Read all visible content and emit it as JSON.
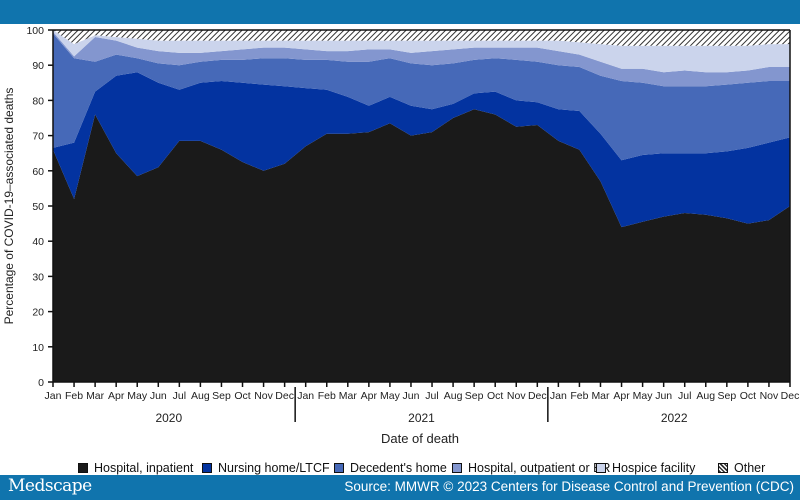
{
  "header": {
    "color": "#1074ad"
  },
  "footer": {
    "brand": "Medscape",
    "source": "Source: MMWR © 2023 Centers for Disease Control and Prevention (CDC)"
  },
  "chart_data": {
    "type": "area",
    "stacked": true,
    "title": "",
    "xlabel": "Date of death",
    "ylabel": "Percentage of COVID-19–associated deaths",
    "ylim": [
      0,
      100
    ],
    "yticks": [
      0,
      10,
      20,
      30,
      40,
      50,
      60,
      70,
      80,
      90,
      100
    ],
    "grid": false,
    "legend_position": "bottom",
    "years": [
      "2020",
      "2021",
      "2022"
    ],
    "month_labels": [
      "Jan",
      "Feb",
      "Mar",
      "Apr",
      "May",
      "Jun",
      "Jul",
      "Aug",
      "Sep",
      "Oct",
      "Nov",
      "Dec"
    ],
    "x": [
      "Jan 2020",
      "Feb 2020",
      "Mar 2020",
      "Apr 2020",
      "May 2020",
      "Jun 2020",
      "Jul 2020",
      "Aug 2020",
      "Sep 2020",
      "Oct 2020",
      "Nov 2020",
      "Dec 2020",
      "Jan 2021",
      "Feb 2021",
      "Mar 2021",
      "Apr 2021",
      "May 2021",
      "Jun 2021",
      "Jul 2021",
      "Aug 2021",
      "Sep 2021",
      "Oct 2021",
      "Nov 2021",
      "Dec 2021",
      "Jan 2022",
      "Feb 2022",
      "Mar 2022",
      "Apr 2022",
      "May 2022",
      "Jun 2022",
      "Jul 2022",
      "Aug 2022",
      "Sep 2022",
      "Oct 2022",
      "Nov 2022",
      "Dec 2022"
    ],
    "series": [
      {
        "name": "Hospital, inpatient",
        "color": "#1a1a1a",
        "values": [
          66,
          52,
          76,
          65,
          58.5,
          61,
          68.5,
          68.5,
          66,
          62.5,
          60,
          62,
          67,
          70.5,
          70.5,
          71,
          73.5,
          70,
          71,
          75,
          77.5,
          76,
          72.5,
          73,
          68.5,
          66,
          57,
          44,
          45.5,
          47,
          48,
          47.5,
          46.5,
          45,
          46,
          50
        ]
      },
      {
        "name": "Nursing home/LTCF",
        "color": "#0333a0",
        "values": [
          0.5,
          16,
          6.5,
          22,
          29.5,
          24,
          14.5,
          16.5,
          19.5,
          22.5,
          24.5,
          22,
          16.5,
          12.5,
          10.5,
          7.5,
          7.5,
          8.5,
          6.5,
          4,
          4.5,
          6.5,
          7.5,
          6.5,
          9,
          11,
          13.5,
          19,
          19,
          18,
          17,
          17.5,
          19,
          21.5,
          22,
          19.5
        ]
      },
      {
        "name": "Decedent's home",
        "color": "#4669b8",
        "values": [
          32.5,
          24,
          8.5,
          6,
          4,
          5.5,
          7,
          6,
          6,
          6.5,
          7.5,
          8,
          8,
          8.5,
          10,
          12.5,
          11,
          12,
          12.5,
          11.5,
          9.5,
          9.5,
          11.5,
          11.5,
          12.5,
          12.5,
          16.5,
          22.5,
          20.5,
          19,
          19,
          19,
          19,
          18.5,
          17.5,
          16
        ]
      },
      {
        "name": "Hospital, outpatient or ER",
        "color": "#8396cf",
        "values": [
          0.5,
          0.5,
          7,
          4,
          3,
          3.5,
          3.5,
          2.5,
          2.5,
          3,
          3,
          3,
          3,
          2.5,
          3,
          3.5,
          2.5,
          3,
          4,
          4,
          3.5,
          3,
          3.5,
          4,
          4,
          3.5,
          4,
          3.5,
          4,
          4,
          4.5,
          4,
          3.5,
          3.5,
          4,
          4
        ]
      },
      {
        "name": "Hospice facility",
        "color": "#cbd4ec",
        "values": [
          0.5,
          3.5,
          0.5,
          1,
          2.5,
          3,
          3.5,
          3.5,
          3,
          2.5,
          2,
          2,
          2.5,
          3,
          3,
          2.5,
          2.5,
          3.5,
          3,
          2.5,
          2,
          2,
          2,
          2,
          3,
          3.5,
          5,
          6.5,
          6.5,
          7.5,
          7,
          7.5,
          7.5,
          7,
          6.5,
          6.5
        ]
      },
      {
        "name": "Other",
        "color": "hatched",
        "values": [
          0,
          4,
          1.5,
          2,
          2.5,
          3,
          3,
          3,
          3,
          3,
          3,
          3,
          3,
          3,
          3,
          3,
          3,
          3,
          3,
          3,
          3,
          3,
          3,
          3,
          3,
          3.5,
          4,
          4.5,
          4.5,
          4.5,
          4.5,
          4.5,
          4.5,
          4.5,
          4,
          4
        ]
      }
    ]
  },
  "legend": {
    "items": [
      {
        "label": "Hospital, inpatient",
        "color": "#1a1a1a"
      },
      {
        "label": "Nursing home/LTCF",
        "color": "#0333a0"
      },
      {
        "label": "Decedent's home",
        "color": "#4669b8"
      },
      {
        "label": "Hospital, outpatient or ER",
        "color": "#8396cf"
      },
      {
        "label": "Hospice facility",
        "color": "#cbd4ec"
      },
      {
        "label": "Other",
        "color": "hatched"
      }
    ]
  }
}
